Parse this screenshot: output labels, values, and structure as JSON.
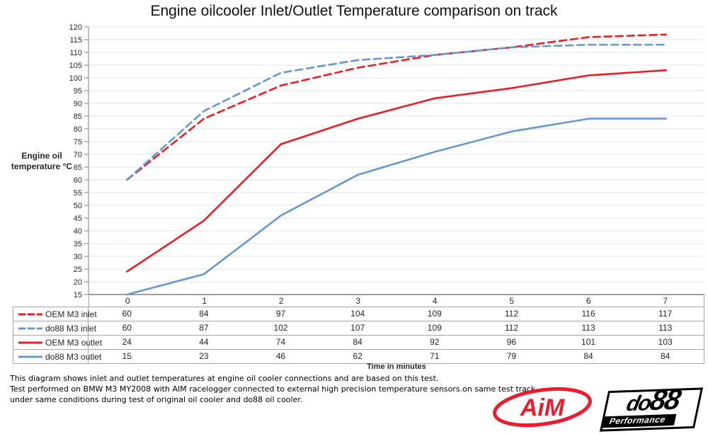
{
  "title": "Engine oilcooler Inlet/Outlet Temperature comparison on track",
  "chart_data": {
    "type": "line",
    "title": "Engine oilcooler Inlet/Outlet Temperature comparison on track",
    "ylabel_lines": [
      "Engine oil",
      "temperature °C"
    ],
    "xlabel": "Time in minutes",
    "categories": [
      "0",
      "1",
      "2",
      "3",
      "4",
      "5",
      "6",
      "7"
    ],
    "ylim": [
      15,
      120
    ],
    "ytick_step": 5,
    "grid": true,
    "gridline_color": "#DCE6F2",
    "axis_color": "#808080",
    "legend_position": "left-of-data-table",
    "series": [
      {
        "name": "OEM M3 inlet",
        "color": "#EC1C24",
        "style": "dashed",
        "values": [
          60,
          84,
          97,
          104,
          109,
          112,
          116,
          117
        ]
      },
      {
        "name": "do88 M3 inlet",
        "color": "#6598D0",
        "style": "dashed",
        "values": [
          60,
          87,
          102,
          107,
          109,
          112,
          113,
          113
        ]
      },
      {
        "name": "OEM M3 outlet",
        "color": "#EC1C24",
        "style": "solid",
        "values": [
          24,
          44,
          74,
          84,
          92,
          96,
          101,
          103
        ]
      },
      {
        "name": "do88 M3 outlet",
        "color": "#6598D0",
        "style": "solid",
        "values": [
          15,
          23,
          46,
          62,
          71,
          79,
          84,
          84
        ]
      }
    ]
  },
  "table": {
    "border_color": "#A6A6A6"
  },
  "captions": [
    "This diagram shows inlet and outlet temperatures at engine oil cooler connections and are based on this test.",
    "Test performed on BMW M3 MY2008 with AIM racelogger connected to external high precision temperature sensors.on same test track",
    "under same conditions during test of original oil cooler and do88 oil cooler."
  ],
  "logos": {
    "aim_text": "AiM",
    "aim_color": "#ED1B2E",
    "do88_text_do": "do",
    "do88_text_88": "88",
    "do88_sub": "Performance",
    "do88_color": "#000000"
  }
}
